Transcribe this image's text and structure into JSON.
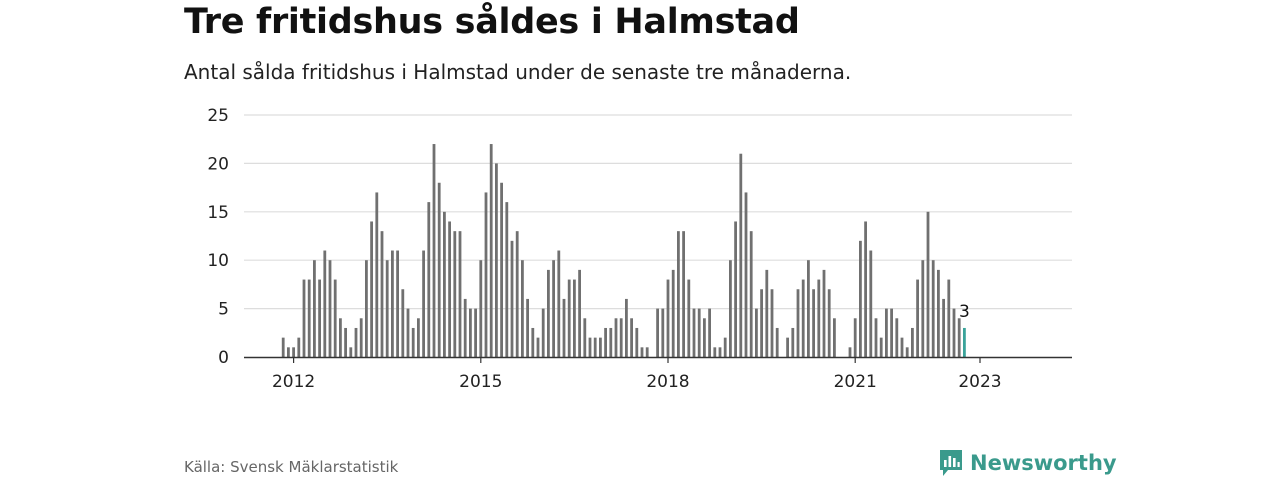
{
  "header": {
    "title": "Tre fritidshus såldes i Halmstad",
    "subtitle": "Antal sålda fritidshus i Halmstad under de senaste tre månaderna."
  },
  "footer": {
    "source": "Källa: Svensk Mäklarstatistik",
    "brand": "Newsworthy"
  },
  "colors": {
    "bar": "#707070",
    "highlight": "#3aa39a",
    "grid": "#dddddd",
    "axis": "#333333",
    "brand": "#3a9a8c"
  },
  "chart_data": {
    "type": "bar",
    "start": "2011-11",
    "x_ticks": [
      "2012",
      "2015",
      "2018",
      "2021",
      "2023"
    ],
    "y_ticks": [
      0,
      5,
      10,
      15,
      20,
      25
    ],
    "ylim": [
      0,
      25
    ],
    "grid": true,
    "values": [
      2,
      1,
      1,
      2,
      8,
      8,
      10,
      8,
      11,
      10,
      8,
      4,
      3,
      1,
      3,
      4,
      10,
      14,
      17,
      13,
      10,
      11,
      11,
      7,
      5,
      3,
      4,
      11,
      16,
      22,
      18,
      15,
      14,
      13,
      13,
      6,
      5,
      5,
      10,
      17,
      22,
      20,
      18,
      16,
      12,
      13,
      10,
      6,
      3,
      2,
      5,
      9,
      10,
      11,
      6,
      8,
      8,
      9,
      4,
      2,
      2,
      2,
      3,
      3,
      4,
      4,
      6,
      4,
      3,
      1,
      1,
      0,
      5,
      5,
      8,
      9,
      13,
      13,
      8,
      5,
      5,
      4,
      5,
      1,
      1,
      2,
      10,
      14,
      21,
      17,
      13,
      5,
      7,
      9,
      7,
      3,
      0,
      2,
      3,
      7,
      8,
      10,
      7,
      8,
      9,
      7,
      4,
      0,
      0,
      1,
      4,
      12,
      14,
      11,
      4,
      2,
      5,
      5,
      4,
      2,
      1,
      3,
      8,
      10,
      15,
      10,
      9,
      6,
      8,
      5,
      4,
      3
    ],
    "last_label": "3"
  }
}
